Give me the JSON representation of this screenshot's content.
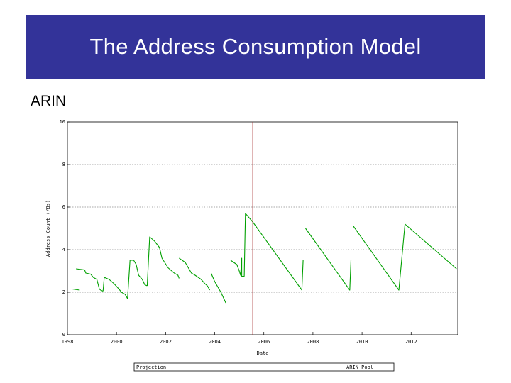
{
  "slide": {
    "title": "The Address Consumption Model",
    "subtitle": "ARIN"
  },
  "colors": {
    "title_bg": "#333399",
    "pool_series": "#00a000",
    "projection_series": "#a02020",
    "grid": "#8c8c8c"
  },
  "chart_data": {
    "type": "line",
    "title": "",
    "xlabel": "Date",
    "ylabel": "Address Count (/8s)",
    "xlim": [
      1998,
      2013.9
    ],
    "ylim": [
      0,
      10
    ],
    "xticks": [
      {
        "value": 1998,
        "label": "1998"
      },
      {
        "value": 2000,
        "label": "2000"
      },
      {
        "value": 2002,
        "label": "2002"
      },
      {
        "value": 2004,
        "label": "2004"
      },
      {
        "value": 2006,
        "label": "2006"
      },
      {
        "value": 2008,
        "label": "2008"
      },
      {
        "value": 2010,
        "label": "2010"
      },
      {
        "value": 2012,
        "label": "2012"
      }
    ],
    "yticks": [
      {
        "value": 0,
        "label": "0"
      },
      {
        "value": 2,
        "label": "2"
      },
      {
        "value": 4,
        "label": "4"
      },
      {
        "value": 6,
        "label": "6"
      },
      {
        "value": 8,
        "label": "8"
      },
      {
        "value": 10,
        "label": "10"
      }
    ],
    "grid": true,
    "legend": [
      {
        "name": "Projection",
        "position": "bottom-left"
      },
      {
        "name": "ARIN Pool",
        "position": "bottom-right"
      }
    ],
    "vlines": [
      {
        "name": "Projection",
        "x": 2005.55
      }
    ],
    "series": [
      {
        "name": "ARIN Pool",
        "segments": [
          [
            [
              1998.2,
              2.15
            ],
            [
              1998.5,
              2.1
            ]
          ],
          [
            [
              1998.35,
              3.1
            ],
            [
              1998.7,
              3.05
            ],
            [
              1998.75,
              2.9
            ],
            [
              1998.95,
              2.85
            ],
            [
              1999.05,
              2.7
            ],
            [
              1999.2,
              2.6
            ],
            [
              1999.3,
              2.15
            ],
            [
              1999.35,
              2.1
            ],
            [
              1999.45,
              2.05
            ]
          ],
          [
            [
              1999.45,
              2.05
            ],
            [
              1999.5,
              2.7
            ],
            [
              1999.7,
              2.6
            ],
            [
              1999.9,
              2.4
            ],
            [
              2000.1,
              2.15
            ],
            [
              2000.2,
              2.0
            ],
            [
              2000.35,
              1.9
            ],
            [
              2000.45,
              1.7
            ]
          ],
          [
            [
              2000.45,
              1.7
            ],
            [
              2000.55,
              3.5
            ],
            [
              2000.7,
              3.5
            ],
            [
              2000.8,
              3.3
            ],
            [
              2000.9,
              2.8
            ],
            [
              2001.05,
              2.6
            ],
            [
              2001.15,
              2.35
            ],
            [
              2001.25,
              2.3
            ]
          ],
          [
            [
              2001.25,
              2.3
            ],
            [
              2001.35,
              4.6
            ],
            [
              2001.55,
              4.4
            ],
            [
              2001.75,
              4.1
            ],
            [
              2001.85,
              3.6
            ],
            [
              2002.1,
              3.15
            ],
            [
              2002.25,
              3.0
            ],
            [
              2002.35,
              2.9
            ],
            [
              2002.5,
              2.8
            ],
            [
              2002.55,
              2.65
            ]
          ],
          [
            [
              2002.55,
              3.6
            ],
            [
              2002.8,
              3.4
            ],
            [
              2003.05,
              2.9
            ],
            [
              2003.2,
              2.8
            ],
            [
              2003.45,
              2.6
            ],
            [
              2003.6,
              2.4
            ],
            [
              2003.7,
              2.3
            ],
            [
              2003.8,
              2.1
            ]
          ],
          [
            [
              2003.85,
              2.9
            ],
            [
              2004.0,
              2.5
            ],
            [
              2004.1,
              2.3
            ],
            [
              2004.25,
              2.0
            ],
            [
              2004.35,
              1.75
            ],
            [
              2004.45,
              1.5
            ]
          ],
          [
            [
              2004.65,
              3.5
            ],
            [
              2004.9,
              3.3
            ],
            [
              2005.0,
              3.0
            ],
            [
              2005.05,
              2.8
            ],
            [
              2005.1,
              3.6
            ],
            [
              2005.1,
              2.75
            ],
            [
              2005.2,
              2.75
            ],
            [
              2005.25,
              5.7
            ],
            [
              2005.4,
              5.5
            ],
            [
              2005.55,
              5.3
            ],
            [
              2007.55,
              2.1
            ]
          ],
          [
            [
              2007.55,
              2.1
            ],
            [
              2007.6,
              3.5
            ]
          ],
          [
            [
              2007.7,
              5.0
            ],
            [
              2009.5,
              2.1
            ],
            [
              2009.55,
              3.5
            ]
          ],
          [
            [
              2009.65,
              5.1
            ],
            [
              2011.5,
              2.1
            ],
            [
              2011.75,
              5.2
            ],
            [
              2013.85,
              3.1
            ]
          ]
        ]
      }
    ]
  }
}
